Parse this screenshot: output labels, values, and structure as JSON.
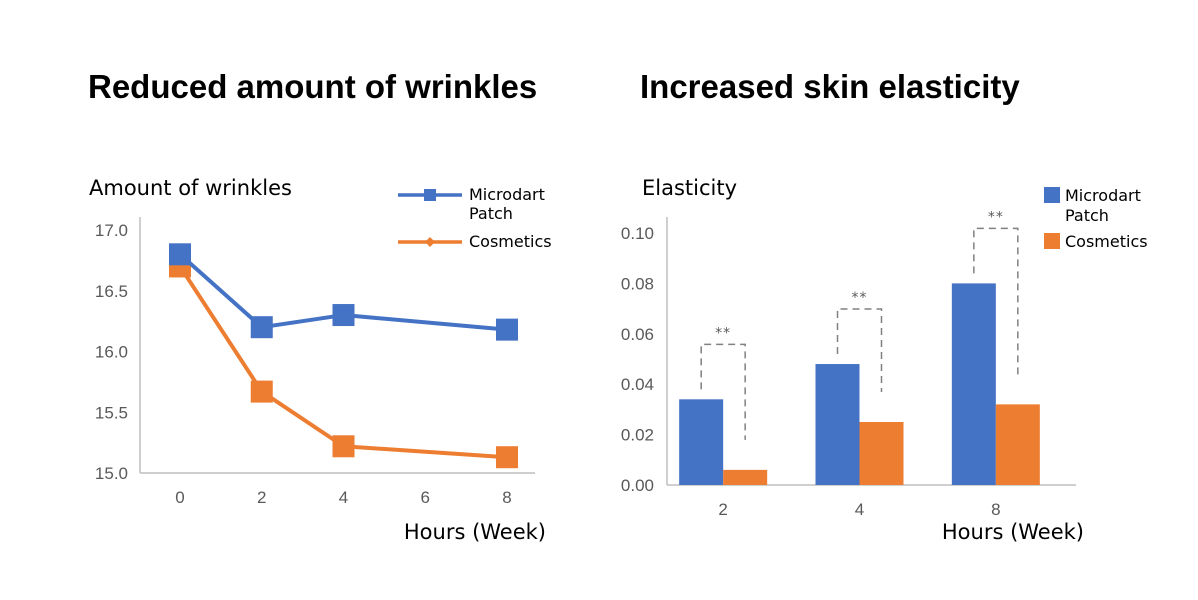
{
  "chart_data": [
    {
      "type": "line",
      "title": "Reduced amount of wrinkles",
      "ylabel": "Amount of wrinkles",
      "xlabel": "Hours (Week)",
      "x": [
        0,
        2,
        4,
        8
      ],
      "xticks": [
        "0",
        "2",
        "4",
        "6",
        "8"
      ],
      "xlim": [
        -0.6,
        8.6
      ],
      "yticks": [
        "17.0",
        "16.5",
        "16.0",
        "15.5",
        "15.0"
      ],
      "ylim": [
        15.0,
        17.0
      ],
      "series": [
        {
          "name": "Microdart Patch",
          "name_lines": [
            "Microdart",
            "Patch"
          ],
          "values": [
            16.8,
            16.2,
            16.3,
            16.18
          ],
          "color": "#4472C4"
        },
        {
          "name": "Cosmetics",
          "name_lines": [
            "Cosmetics"
          ],
          "values": [
            16.7,
            15.67,
            15.22,
            15.13
          ],
          "color": "#ED7D31"
        }
      ],
      "legend": "top-right",
      "grid": false
    },
    {
      "type": "bar",
      "title": "Increased skin elasticity",
      "ylabel": "Elasticity",
      "xlabel": "Hours (Week)",
      "categories": [
        "2",
        "4",
        "8"
      ],
      "yticks": [
        "0.10",
        "0.08",
        "0.06",
        "0.04",
        "0.02",
        "0.00"
      ],
      "ylim": [
        0,
        0.1
      ],
      "series": [
        {
          "name": "Microdart Patch",
          "name_lines": [
            "Microdart",
            "Patch"
          ],
          "values": [
            0.034,
            0.048,
            0.08
          ],
          "color": "#4472C4"
        },
        {
          "name": "Cosmetics",
          "name_lines": [
            "Cosmetics"
          ],
          "values": [
            0.006,
            0.025,
            0.032
          ],
          "color": "#ED7D31"
        }
      ],
      "significance": [
        "**",
        "**",
        "**"
      ],
      "legend": "top-right",
      "grid": false
    }
  ]
}
